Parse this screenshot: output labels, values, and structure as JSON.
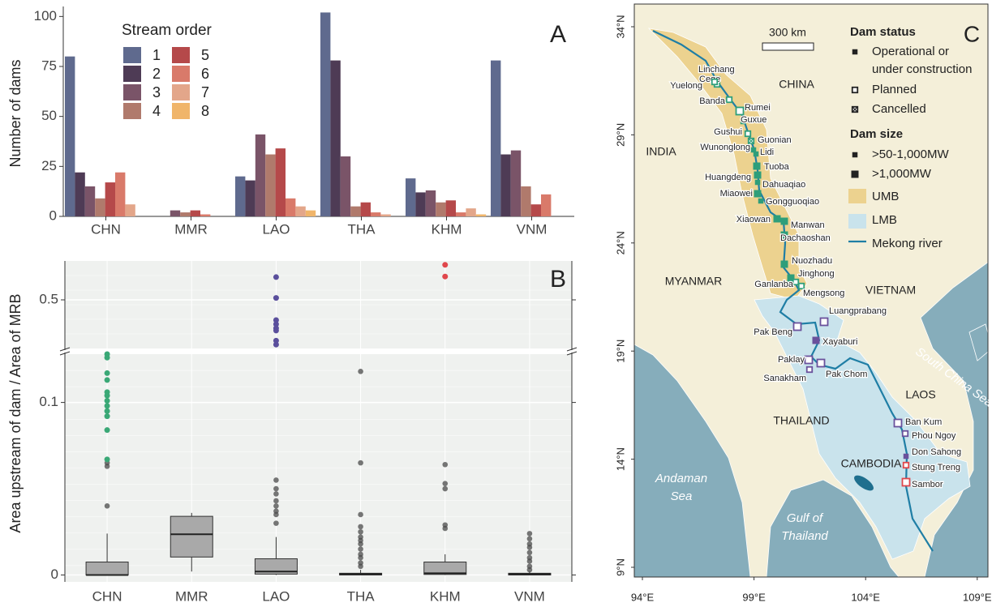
{
  "chart_data": [
    {
      "type": "bar",
      "panel_label": "A",
      "y_label": "Number of dams",
      "legend_title": "Stream order",
      "categories": [
        "CHN",
        "MMR",
        "LAO",
        "THA",
        "KHM",
        "VNM"
      ],
      "series": [
        {
          "name": "1",
          "color": "#5f6a8e",
          "values": [
            80,
            0,
            20,
            102,
            19,
            78
          ]
        },
        {
          "name": "2",
          "color": "#4e3b55",
          "values": [
            22,
            0,
            18,
            78,
            12,
            31
          ]
        },
        {
          "name": "3",
          "color": "#7a5468",
          "values": [
            15,
            3,
            41,
            30,
            13,
            33
          ]
        },
        {
          "name": "4",
          "color": "#b07a6c",
          "values": [
            9,
            2,
            31,
            5,
            7,
            15
          ]
        },
        {
          "name": "5",
          "color": "#b5494a",
          "values": [
            17,
            3,
            34,
            7,
            8,
            6
          ]
        },
        {
          "name": "6",
          "color": "#d97a6a",
          "values": [
            22,
            1,
            9,
            2,
            2,
            11
          ]
        },
        {
          "name": "7",
          "color": "#e3a68a",
          "values": [
            6,
            0,
            5,
            1,
            4,
            0
          ]
        },
        {
          "name": "8",
          "color": "#f0b56a",
          "values": [
            0,
            0,
            3,
            0,
            1,
            0
          ]
        }
      ],
      "ylim": [
        0,
        105
      ],
      "yticks": [
        0,
        25,
        50,
        75,
        100
      ]
    },
    {
      "type": "box",
      "panel_label": "B",
      "y_label": "Area upstream of dam / Area of MRB",
      "categories": [
        "CHN",
        "MMR",
        "LAO",
        "THA",
        "KHM",
        "VNM"
      ],
      "ylim": [
        -0.004,
        0.128
      ],
      "yticks": [
        0,
        0.1
      ],
      "broken_ylim": [
        0.25,
        0.7
      ],
      "broken_yticks": [
        0.5
      ],
      "color": "#a9a9a9",
      "outlier_color": "#4a4a4a",
      "boxes": [
        {
          "whisker_low": 0,
          "q1": 0,
          "median": 0,
          "q3": 0.0075,
          "whisker_high": 0.024,
          "outliers": [
            0.04,
            0.063,
            0.065
          ],
          "highlight": [
            0.067,
            0.084,
            0.092,
            0.095,
            0.098,
            0.101,
            0.104,
            0.106,
            0.113,
            0.117,
            0.126,
            0.128
          ],
          "highlight_color": "#3aa876"
        },
        {
          "whisker_low": 0.002,
          "q1": 0.0104,
          "median": 0.0236,
          "q3": 0.034,
          "whisker_high": 0.036,
          "outliers": [],
          "highlight": []
        },
        {
          "whisker_low": 0,
          "q1": 0.0005,
          "median": 0.002,
          "q3": 0.0094,
          "whisker_high": 0.022,
          "outliers": [
            0.03,
            0.035,
            0.037,
            0.04,
            0.043,
            0.047,
            0.05,
            0.055
          ],
          "highlight": [
            0.27,
            0.29,
            0.342,
            0.354,
            0.375,
            0.396,
            0.51,
            0.617
          ],
          "highlight_color": "#5a4f9c"
        },
        {
          "whisker_low": 0,
          "q1": 0,
          "median": 0.0005,
          "q3": 0.001,
          "whisker_high": 0.003,
          "outliers": [
            0.005,
            0.007,
            0.01,
            0.012,
            0.015,
            0.018,
            0.02,
            0.022,
            0.025,
            0.028,
            0.035,
            0.065,
            0.118
          ],
          "highlight": []
        },
        {
          "whisker_low": 0,
          "q1": 0.0003,
          "median": 0.001,
          "q3": 0.0075,
          "whisker_high": 0.012,
          "outliers": [
            0.027,
            0.029,
            0.05,
            0.053,
            0.064
          ],
          "highlight": [
            0.62,
            0.68
          ],
          "highlight_color": "#e0474c"
        },
        {
          "whisker_low": 0,
          "q1": 0,
          "median": 0.0005,
          "q3": 0.001,
          "whisker_high": 0.002,
          "outliers": [
            0.003,
            0.005,
            0.008,
            0.01,
            0.013,
            0.016,
            0.018,
            0.021,
            0.024
          ],
          "highlight": []
        }
      ]
    }
  ],
  "map": {
    "panel_label": "C",
    "lat_ticks": [
      "34°N",
      "29°N",
      "24°N",
      "19°N",
      "14°N",
      "9°N"
    ],
    "lon_ticks": [
      "94°E",
      "99°E",
      "104°E",
      "109°E"
    ],
    "scale_label": "300 km",
    "status_title": "Dam status",
    "status": [
      [
        "Operational or",
        "under construction"
      ],
      [
        "Planned"
      ],
      [
        "Cancelled"
      ]
    ],
    "size_title": "Dam size",
    "sizes": [
      ">50-1,000MW",
      ">1,000MW"
    ],
    "areas": [
      "UMB",
      "LMB",
      "Mekong river"
    ],
    "countries": [
      "CHINA",
      "INDIA",
      "MYANMAR",
      "VIETNAM",
      "LAOS",
      "THAILAND",
      "CAMBODIA"
    ],
    "seas": [
      [
        "Andaman",
        "Sea"
      ],
      [
        "Gulf of",
        "Thailand"
      ],
      [
        "South China Sea"
      ]
    ],
    "dams": [
      "Linchang",
      "Cege",
      "Yuelong",
      "Banda",
      "Rumei",
      "Guxue",
      "Gushui",
      "Guonian",
      "Wunonglong",
      "Lidi",
      "Tuoba",
      "Huangdeng",
      "Dahuaqiao",
      "Miaowei",
      "Gongguoqiao",
      "Xiaowan",
      "Manwan",
      "Dachaoshan",
      "Nuozhadu",
      "Jinghong",
      "Ganlanba",
      "Mengsong",
      "Luangprabang",
      "Pak Beng",
      "Xayaburi",
      "Paklay",
      "Sanakham",
      "Pak Chom",
      "Ban Kum",
      "Phou Ngoy",
      "Don Sahong",
      "Stung Treng",
      "Sambor"
    ]
  }
}
